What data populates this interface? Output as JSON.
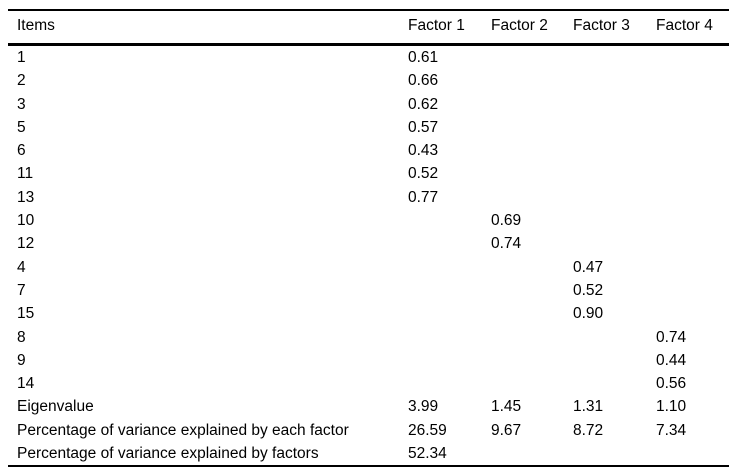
{
  "table": {
    "columns": [
      "Items",
      "Factor 1",
      "Factor 2",
      "Factor 3",
      "Factor 4"
    ],
    "rows": [
      [
        "1",
        "0.61",
        "",
        "",
        ""
      ],
      [
        "2",
        "0.66",
        "",
        "",
        ""
      ],
      [
        "3",
        "0.62",
        "",
        "",
        ""
      ],
      [
        "5",
        "0.57",
        "",
        "",
        ""
      ],
      [
        "6",
        "0.43",
        "",
        "",
        ""
      ],
      [
        "11",
        "0.52",
        "",
        "",
        ""
      ],
      [
        "13",
        "0.77",
        "",
        "",
        ""
      ],
      [
        "10",
        "",
        "0.69",
        "",
        ""
      ],
      [
        "12",
        "",
        "0.74",
        "",
        ""
      ],
      [
        "4",
        "",
        "",
        "0.47",
        ""
      ],
      [
        "7",
        "",
        "",
        "0.52",
        ""
      ],
      [
        "15",
        "",
        "",
        "0.90",
        ""
      ],
      [
        "8",
        "",
        "",
        "",
        "0.74"
      ],
      [
        "9",
        "",
        "",
        "",
        "0.44"
      ],
      [
        "14",
        "",
        "",
        "",
        "0.56"
      ],
      [
        "Eigenvalue",
        "3.99",
        "1.45",
        "1.31",
        "1.10"
      ],
      [
        "Percentage of variance explained by each factor",
        "26.59",
        "9.67",
        "8.72",
        "7.34"
      ],
      [
        "Percentage of variance explained by factors",
        "52.34",
        "",
        "",
        ""
      ]
    ]
  },
  "colors": {
    "text": "#000000",
    "background": "#ffffff",
    "rule": "#000000"
  }
}
